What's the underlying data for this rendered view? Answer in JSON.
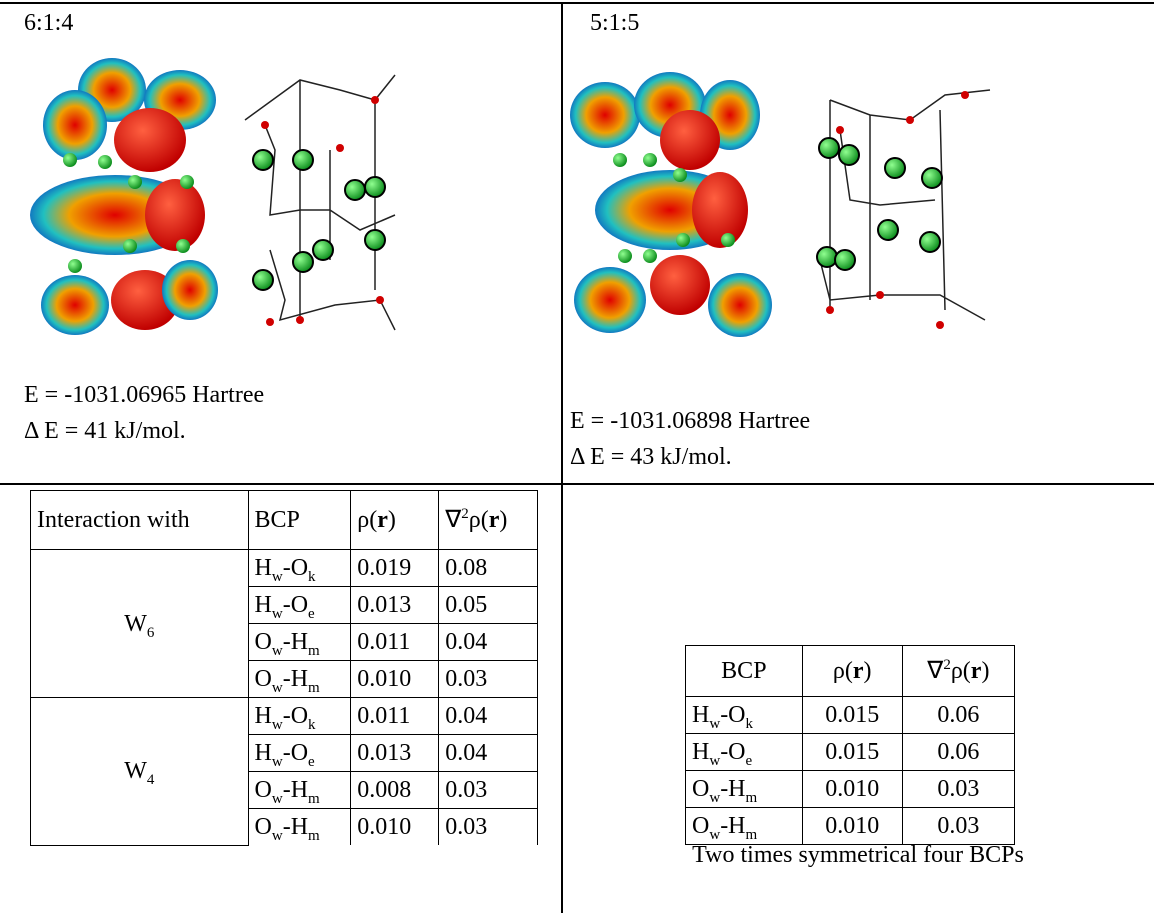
{
  "left": {
    "ratio": "6:1:4",
    "energy": "E = -1031.06965 Hartree",
    "delta": "Δ E = 41 kJ/mol.",
    "table": {
      "header": [
        [
          {
            "t": "Interaction with"
          }
        ],
        [
          {
            "t": "BCP"
          }
        ],
        [
          {
            "t": "ρ("
          },
          {
            "b": "r"
          },
          {
            "t": ")"
          }
        ],
        [
          {
            "t": "∇"
          },
          {
            "sup": "2"
          },
          {
            "t": "ρ("
          },
          {
            "b": "r"
          },
          {
            "t": ")"
          }
        ]
      ],
      "groups": [
        {
          "label": [
            {
              "t": "W"
            },
            {
              "sub": "6"
            }
          ],
          "rows": [
            {
              "bcp": [
                {
                  "t": "H"
                },
                {
                  "sub": "w"
                },
                {
                  "t": "-O"
                },
                {
                  "sub": "k"
                }
              ],
              "rho": "0.019",
              "lap": "0.08"
            },
            {
              "bcp": [
                {
                  "t": "H"
                },
                {
                  "sub": "w"
                },
                {
                  "t": "-O"
                },
                {
                  "sub": "e"
                }
              ],
              "rho": "0.013",
              "lap": "0.05"
            },
            {
              "bcp": [
                {
                  "t": "O"
                },
                {
                  "sub": "w"
                },
                {
                  "t": "-H"
                },
                {
                  "sub": "m"
                }
              ],
              "rho": "0.011",
              "lap": "0.04"
            },
            {
              "bcp": [
                {
                  "t": "O"
                },
                {
                  "sub": "w"
                },
                {
                  "t": "-H"
                },
                {
                  "sub": "m"
                }
              ],
              "rho": "0.010",
              "lap": "0.03"
            }
          ]
        },
        {
          "label": [
            {
              "t": "W"
            },
            {
              "sub": "4"
            }
          ],
          "rows": [
            {
              "bcp": [
                {
                  "t": "H"
                },
                {
                  "sub": "w"
                },
                {
                  "t": "-O"
                },
                {
                  "sub": "k"
                }
              ],
              "rho": "0.011",
              "lap": "0.04"
            },
            {
              "bcp": [
                {
                  "t": "H"
                },
                {
                  "sub": "w"
                },
                {
                  "t": "-O"
                },
                {
                  "sub": "e"
                }
              ],
              "rho": "0.013",
              "lap": "0.04"
            },
            {
              "bcp": [
                {
                  "t": "O"
                },
                {
                  "sub": "w"
                },
                {
                  "t": "-H"
                },
                {
                  "sub": "m"
                }
              ],
              "rho": "0.008",
              "lap": "0.03"
            },
            {
              "bcp": [
                {
                  "t": "O"
                },
                {
                  "sub": "w"
                },
                {
                  "t": "-H"
                },
                {
                  "sub": "m"
                }
              ],
              "rho": "0.010",
              "lap": "0.03"
            }
          ]
        }
      ]
    }
  },
  "right": {
    "ratio": "5:1:5",
    "energy": "E = -1031.06898 Hartree",
    "delta": "Δ E = 43 kJ/mol.",
    "table": {
      "header": [
        [
          {
            "t": "BCP"
          }
        ],
        [
          {
            "t": "ρ("
          },
          {
            "b": "r"
          },
          {
            "t": ")"
          }
        ],
        [
          {
            "t": "∇"
          },
          {
            "sup": "2"
          },
          {
            "t": "ρ("
          },
          {
            "b": "r"
          },
          {
            "t": ")"
          }
        ]
      ],
      "rows": [
        {
          "bcp": [
            {
              "t": "H"
            },
            {
              "sub": "w"
            },
            {
              "t": "-O"
            },
            {
              "sub": "k"
            }
          ],
          "rho": "0.015",
          "lap": "0.06"
        },
        {
          "bcp": [
            {
              "t": "H"
            },
            {
              "sub": "w"
            },
            {
              "t": "-O"
            },
            {
              "sub": "e"
            }
          ],
          "rho": "0.015",
          "lap": "0.06"
        },
        {
          "bcp": [
            {
              "t": "O"
            },
            {
              "sub": "w"
            },
            {
              "t": "-H"
            },
            {
              "sub": "m"
            }
          ],
          "rho": "0.010",
          "lap": "0.03"
        },
        {
          "bcp": [
            {
              "t": "O"
            },
            {
              "sub": "w"
            },
            {
              "t": "-H"
            },
            {
              "sub": "m"
            }
          ],
          "rho": "0.010",
          "lap": "0.03"
        }
      ]
    },
    "note": "Two times symmetrical four BCPs"
  }
}
